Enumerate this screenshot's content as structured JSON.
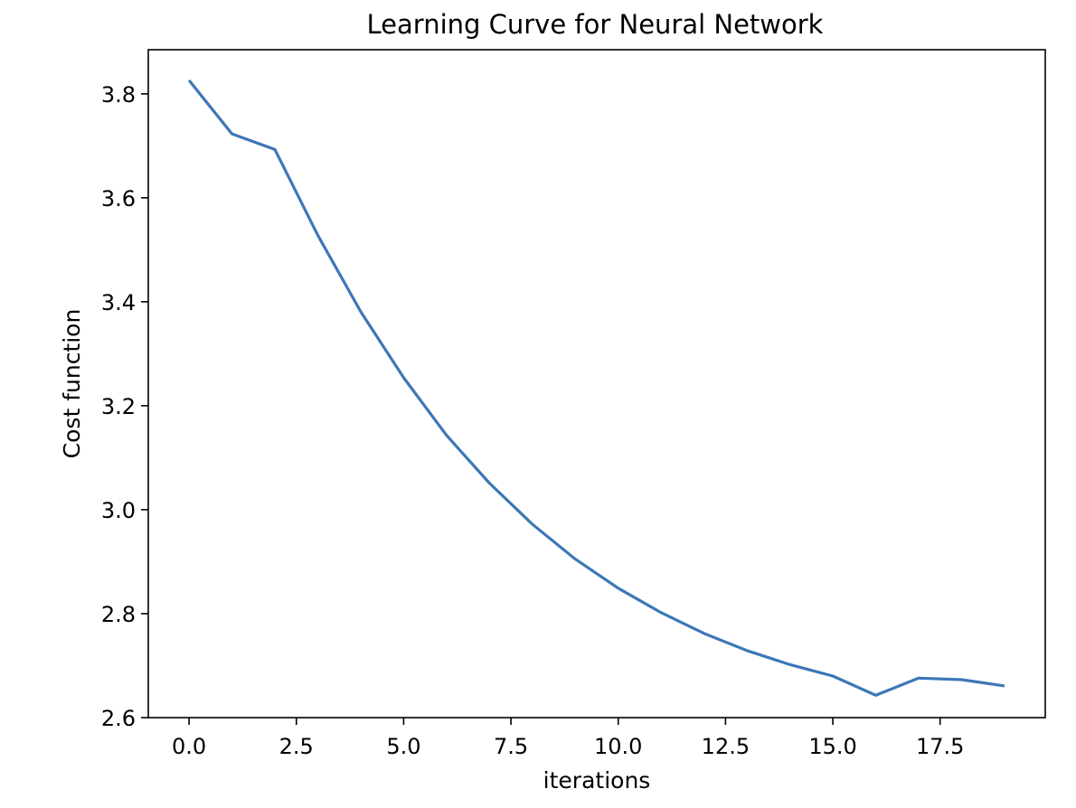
{
  "chart_data": {
    "type": "line",
    "title": "Learning Curve for Neural Network",
    "xlabel": "iterations",
    "ylabel": "Cost function",
    "xlim": [
      -0.95,
      19.95
    ],
    "ylim": [
      2.6,
      3.885
    ],
    "xticks": [
      0.0,
      2.5,
      5.0,
      7.5,
      10.0,
      12.5,
      15.0,
      17.5
    ],
    "xtick_labels": [
      "0.0",
      "2.5",
      "5.0",
      "7.5",
      "10.0",
      "12.5",
      "15.0",
      "17.5"
    ],
    "yticks": [
      2.6,
      2.8,
      3.0,
      3.2,
      3.4,
      3.6,
      3.8
    ],
    "ytick_labels": [
      "2.6",
      "2.8",
      "3.0",
      "3.2",
      "3.4",
      "3.6",
      "3.8"
    ],
    "grid": false,
    "series": [
      {
        "color": "#3d77b6",
        "x": [
          0,
          1,
          2,
          3,
          4,
          5,
          6,
          7,
          8,
          9,
          10,
          11,
          12,
          13,
          14,
          15,
          16,
          17,
          18,
          19
        ],
        "y": [
          3.826,
          3.723,
          3.693,
          3.528,
          3.381,
          3.254,
          3.143,
          3.051,
          2.972,
          2.905,
          2.849,
          2.802,
          2.762,
          2.729,
          2.702,
          2.68,
          2.643,
          2.676,
          2.673,
          2.661
        ]
      }
    ]
  }
}
